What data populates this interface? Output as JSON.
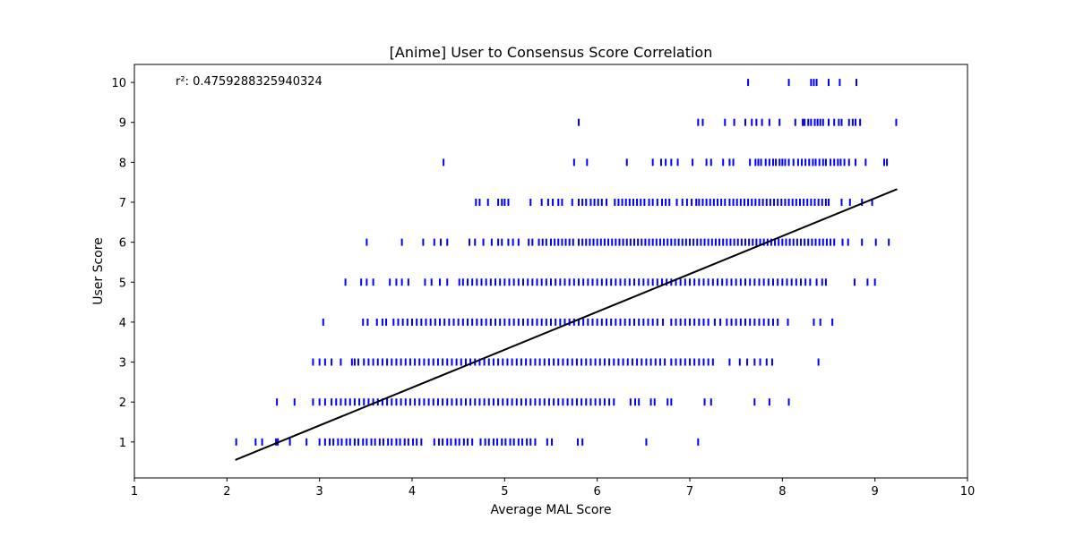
{
  "chart_data": {
    "type": "scatter",
    "title": "[Anime] User to Consensus Score Correlation",
    "xlabel": "Average MAL Score",
    "ylabel": "User Score",
    "xlim": [
      1,
      10
    ],
    "ylim": [
      0.1,
      10.45
    ],
    "xticks": [
      "1",
      "2",
      "3",
      "4",
      "5",
      "6",
      "7",
      "8",
      "9",
      "10"
    ],
    "yticks": [
      "1",
      "2",
      "3",
      "4",
      "5",
      "6",
      "7",
      "8",
      "9",
      "10"
    ],
    "annotation": "r²: 0.4759288325940324",
    "marker": "|",
    "point_color": "#0000ff",
    "fit_color": "#000000",
    "grid": false,
    "legend": "none",
    "trend_line": {
      "x": [
        2.09,
        9.24
      ],
      "y": [
        0.55,
        7.33
      ]
    },
    "series": [
      {
        "points_by_score": [
          {
            "y": 10,
            "x": [
              7.63,
              8.07,
              8.31,
              8.34,
              8.37,
              8.5,
              8.62,
              8.8
            ]
          },
          {
            "y": 9,
            "x": [
              5.8,
              7.09,
              7.14,
              7.38,
              7.48,
              7.6,
              7.67,
              7.72,
              7.78,
              7.86,
              7.97,
              8.14,
              8.22,
              8.24,
              8.28,
              8.31,
              8.35,
              8.38,
              8.41,
              8.44,
              8.5,
              8.56,
              8.61,
              8.64,
              8.72,
              8.76,
              8.79,
              8.84,
              9.23
            ]
          },
          {
            "y": 8,
            "x": [
              4.34,
              5.75,
              5.89,
              6.32,
              6.6,
              6.69,
              6.74,
              6.8,
              6.87,
              7.03,
              7.18,
              7.23,
              7.36,
              7.43,
              7.47,
              7.65,
              7.71,
              7.74,
              7.77,
              7.82,
              7.86,
              7.9,
              7.93,
              7.97,
              8.0,
              8.03,
              8.07,
              8.12,
              8.17,
              8.21,
              8.25,
              8.29,
              8.33,
              8.36,
              8.4,
              8.44,
              8.47,
              8.52,
              8.56,
              8.6,
              8.63,
              8.67,
              8.72,
              8.79,
              8.9,
              9.1,
              9.13
            ]
          },
          {
            "y": 7,
            "x": [
              4.69,
              4.73,
              4.82,
              4.93,
              4.97,
              5.0,
              5.04,
              5.28,
              5.4,
              5.47,
              5.52,
              5.58,
              5.62,
              5.73,
              5.8,
              5.84,
              5.88,
              5.93,
              5.97,
              6.01,
              6.05,
              6.1,
              6.19,
              6.23,
              6.27,
              6.31,
              6.35,
              6.39,
              6.43,
              6.47,
              6.51,
              6.56,
              6.6,
              6.65,
              6.7,
              6.74,
              6.78,
              6.86,
              6.92,
              6.97,
              7.02,
              7.07,
              7.1,
              7.14,
              7.18,
              7.22,
              7.26,
              7.3,
              7.34,
              7.38,
              7.43,
              7.47,
              7.51,
              7.55,
              7.59,
              7.63,
              7.67,
              7.71,
              7.75,
              7.79,
              7.83,
              7.87,
              7.91,
              7.95,
              7.99,
              8.03,
              8.07,
              8.11,
              8.15,
              8.19,
              8.23,
              8.27,
              8.31,
              8.35,
              8.39,
              8.43,
              8.47,
              8.5,
              8.64,
              8.73,
              8.86,
              8.97
            ]
          },
          {
            "y": 6,
            "x": [
              3.51,
              3.89,
              4.12,
              4.24,
              4.31,
              4.38,
              4.62,
              4.68,
              4.77,
              4.86,
              4.93,
              4.97,
              5.04,
              5.09,
              5.15,
              5.26,
              5.3,
              5.37,
              5.41,
              5.45,
              5.5,
              5.54,
              5.58,
              5.62,
              5.66,
              5.7,
              5.74,
              5.8,
              5.84,
              5.88,
              5.92,
              5.96,
              6.0,
              6.04,
              6.08,
              6.12,
              6.16,
              6.2,
              6.24,
              6.28,
              6.32,
              6.36,
              6.4,
              6.44,
              6.48,
              6.52,
              6.56,
              6.6,
              6.64,
              6.68,
              6.72,
              6.76,
              6.8,
              6.84,
              6.88,
              6.92,
              6.96,
              7.0,
              7.04,
              7.08,
              7.12,
              7.16,
              7.2,
              7.24,
              7.28,
              7.32,
              7.36,
              7.4,
              7.44,
              7.48,
              7.52,
              7.56,
              7.6,
              7.64,
              7.68,
              7.72,
              7.76,
              7.8,
              7.84,
              7.88,
              7.92,
              7.96,
              8.0,
              8.04,
              8.08,
              8.12,
              8.16,
              8.2,
              8.24,
              8.28,
              8.32,
              8.36,
              8.4,
              8.44,
              8.48,
              8.52,
              8.56,
              8.65,
              8.71,
              8.86,
              9.01,
              9.15
            ]
          },
          {
            "y": 5,
            "x": [
              3.28,
              3.45,
              3.51,
              3.58,
              3.76,
              3.83,
              3.89,
              3.96,
              4.14,
              4.21,
              4.3,
              4.38,
              4.51,
              4.55,
              4.6,
              4.65,
              4.7,
              4.75,
              4.8,
              4.85,
              4.9,
              4.95,
              5.0,
              5.05,
              5.1,
              5.15,
              5.2,
              5.25,
              5.3,
              5.35,
              5.4,
              5.45,
              5.5,
              5.55,
              5.6,
              5.65,
              5.7,
              5.75,
              5.8,
              5.85,
              5.9,
              5.95,
              6.0,
              6.05,
              6.1,
              6.15,
              6.2,
              6.25,
              6.3,
              6.35,
              6.4,
              6.45,
              6.5,
              6.55,
              6.6,
              6.65,
              6.7,
              6.75,
              6.8,
              6.85,
              6.9,
              6.95,
              7.0,
              7.05,
              7.1,
              7.15,
              7.2,
              7.25,
              7.3,
              7.35,
              7.4,
              7.45,
              7.5,
              7.55,
              7.6,
              7.65,
              7.7,
              7.75,
              7.8,
              7.85,
              7.9,
              7.95,
              8.0,
              8.05,
              8.1,
              8.15,
              8.2,
              8.25,
              8.3,
              8.37,
              8.43,
              8.47,
              8.78,
              8.92,
              9.0
            ]
          },
          {
            "y": 4,
            "x": [
              3.04,
              3.47,
              3.52,
              3.62,
              3.68,
              3.72,
              3.8,
              3.85,
              3.9,
              3.95,
              4.0,
              4.05,
              4.1,
              4.15,
              4.2,
              4.25,
              4.3,
              4.35,
              4.4,
              4.45,
              4.5,
              4.55,
              4.6,
              4.65,
              4.7,
              4.75,
              4.8,
              4.85,
              4.9,
              4.95,
              5.0,
              5.05,
              5.1,
              5.15,
              5.2,
              5.25,
              5.3,
              5.35,
              5.4,
              5.45,
              5.5,
              5.55,
              5.6,
              5.65,
              5.7,
              5.75,
              5.8,
              5.85,
              5.9,
              5.95,
              6.0,
              6.05,
              6.1,
              6.15,
              6.2,
              6.25,
              6.3,
              6.35,
              6.4,
              6.45,
              6.5,
              6.55,
              6.6,
              6.65,
              6.71,
              6.8,
              6.85,
              6.9,
              6.95,
              7.0,
              7.05,
              7.1,
              7.15,
              7.2,
              7.27,
              7.33,
              7.4,
              7.45,
              7.5,
              7.55,
              7.6,
              7.65,
              7.7,
              7.75,
              7.8,
              7.85,
              7.9,
              7.95,
              8.06,
              8.34,
              8.41,
              8.54
            ]
          },
          {
            "y": 3,
            "x": [
              2.93,
              3.0,
              3.06,
              3.13,
              3.23,
              3.35,
              3.38,
              3.42,
              3.48,
              3.53,
              3.58,
              3.63,
              3.68,
              3.73,
              3.78,
              3.83,
              3.88,
              3.93,
              3.98,
              4.03,
              4.08,
              4.13,
              4.18,
              4.23,
              4.28,
              4.33,
              4.38,
              4.43,
              4.48,
              4.53,
              4.58,
              4.63,
              4.68,
              4.73,
              4.78,
              4.83,
              4.88,
              4.93,
              4.98,
              5.03,
              5.08,
              5.13,
              5.18,
              5.23,
              5.28,
              5.33,
              5.38,
              5.43,
              5.48,
              5.53,
              5.58,
              5.63,
              5.68,
              5.73,
              5.78,
              5.83,
              5.88,
              5.93,
              5.98,
              6.03,
              6.08,
              6.13,
              6.18,
              6.23,
              6.28,
              6.33,
              6.38,
              6.43,
              6.48,
              6.53,
              6.58,
              6.63,
              6.68,
              6.73,
              6.8,
              6.85,
              6.9,
              6.95,
              7.0,
              7.05,
              7.1,
              7.15,
              7.2,
              7.25,
              7.43,
              7.54,
              7.62,
              7.7,
              7.76,
              7.83,
              7.89,
              8.39
            ]
          },
          {
            "y": 2,
            "x": [
              2.54,
              2.73,
              2.93,
              3.0,
              3.06,
              3.13,
              3.18,
              3.23,
              3.28,
              3.33,
              3.38,
              3.43,
              3.48,
              3.53,
              3.58,
              3.63,
              3.68,
              3.73,
              3.78,
              3.83,
              3.88,
              3.93,
              3.98,
              4.03,
              4.08,
              4.13,
              4.18,
              4.23,
              4.28,
              4.33,
              4.38,
              4.43,
              4.48,
              4.53,
              4.58,
              4.63,
              4.68,
              4.73,
              4.78,
              4.83,
              4.88,
              4.93,
              4.98,
              5.03,
              5.08,
              5.13,
              5.18,
              5.23,
              5.28,
              5.33,
              5.38,
              5.43,
              5.48,
              5.53,
              5.58,
              5.63,
              5.68,
              5.73,
              5.78,
              5.83,
              5.88,
              5.93,
              5.98,
              6.03,
              6.08,
              6.13,
              6.18,
              6.36,
              6.41,
              6.45,
              6.58,
              6.62,
              6.76,
              6.8,
              7.16,
              7.23,
              7.7,
              7.86,
              8.07
            ]
          },
          {
            "y": 1,
            "x": [
              2.1,
              2.31,
              2.38,
              2.53,
              2.55,
              2.68,
              2.86,
              3.0,
              3.06,
              3.11,
              3.15,
              3.2,
              3.24,
              3.29,
              3.33,
              3.38,
              3.42,
              3.47,
              3.51,
              3.56,
              3.6,
              3.65,
              3.69,
              3.74,
              3.78,
              3.83,
              3.87,
              3.92,
              3.96,
              4.01,
              4.05,
              4.1,
              4.24,
              4.29,
              4.33,
              4.38,
              4.42,
              4.47,
              4.51,
              4.56,
              4.6,
              4.65,
              4.74,
              4.79,
              4.83,
              4.88,
              4.92,
              4.97,
              5.01,
              5.06,
              5.1,
              5.15,
              5.19,
              5.24,
              5.28,
              5.33,
              5.46,
              5.51,
              5.79,
              5.84,
              6.53,
              7.09
            ]
          }
        ]
      }
    ]
  }
}
